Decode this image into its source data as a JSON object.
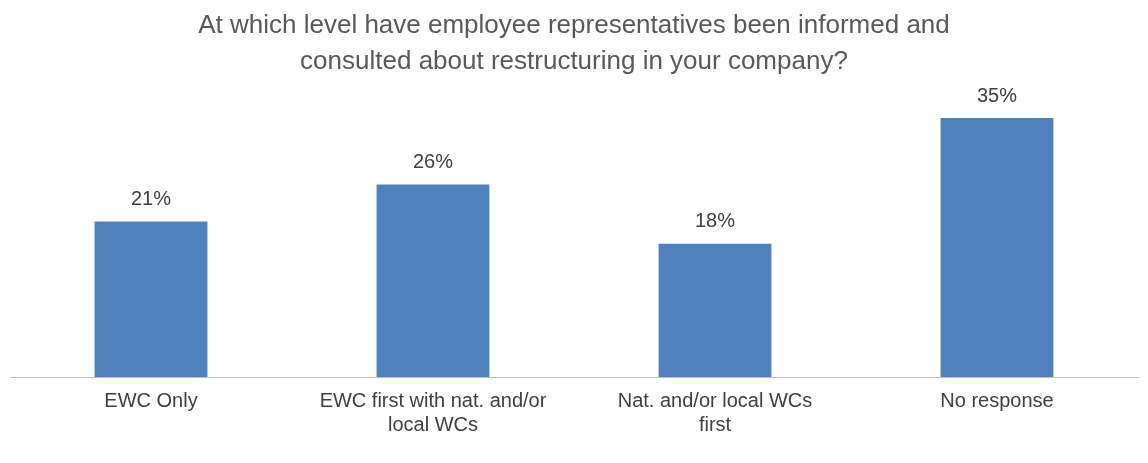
{
  "chart_data": {
    "type": "bar",
    "title": "At which level have employee representatives been informed and consulted about restructuring in your company?",
    "categories": [
      "EWC Only",
      "EWC first with nat. and/or local WCs",
      "Nat. and/or local WCs first",
      "No response"
    ],
    "values": [
      21,
      26,
      18,
      35
    ],
    "color": "#4f81bd",
    "data_labels": true,
    "value_labels": [
      "21%",
      "26%",
      "18%",
      "35%"
    ],
    "legend": false,
    "grid": false
  }
}
